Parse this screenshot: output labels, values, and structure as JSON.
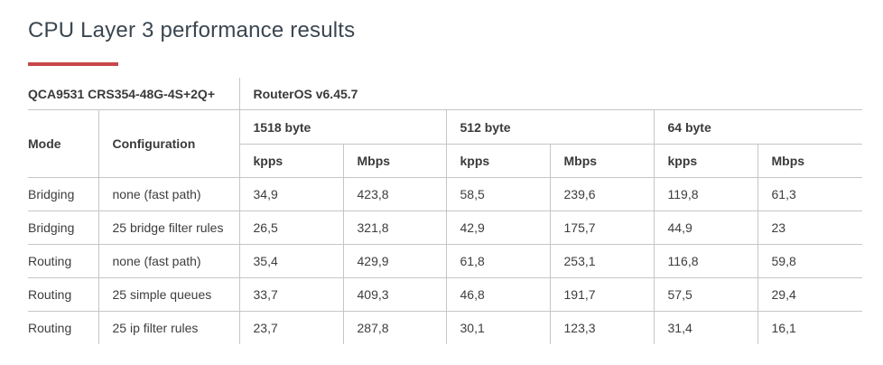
{
  "title": "CPU Layer 3 performance results",
  "accent_color": "#c8474b",
  "table": {
    "device": "QCA9531 CRS354-48G-4S+2Q+",
    "version": "RouterOS v6.45.7",
    "mode_header": "Mode",
    "config_header": "Configuration",
    "packet_sizes": [
      "1518 byte",
      "512 byte",
      "64 byte"
    ],
    "units": [
      "kpps",
      "Mbps",
      "kpps",
      "Mbps",
      "kpps",
      "Mbps"
    ],
    "rows": [
      {
        "mode": "Bridging",
        "config": "none (fast path)",
        "values": [
          "34,9",
          "423,8",
          "58,5",
          "239,6",
          "119,8",
          "61,3"
        ]
      },
      {
        "mode": "Bridging",
        "config": "25 bridge filter rules",
        "values": [
          "26,5",
          "321,8",
          "42,9",
          "175,7",
          "44,9",
          "23"
        ]
      },
      {
        "mode": "Routing",
        "config": "none (fast path)",
        "values": [
          "35,4",
          "429,9",
          "61,8",
          "253,1",
          "116,8",
          "59,8"
        ]
      },
      {
        "mode": "Routing",
        "config": "25 simple queues",
        "values": [
          "33,7",
          "409,3",
          "46,8",
          "191,7",
          "57,5",
          "29,4"
        ]
      },
      {
        "mode": "Routing",
        "config": "25 ip filter rules",
        "values": [
          "23,7",
          "287,8",
          "30,1",
          "123,3",
          "31,4",
          "16,1"
        ]
      }
    ]
  }
}
